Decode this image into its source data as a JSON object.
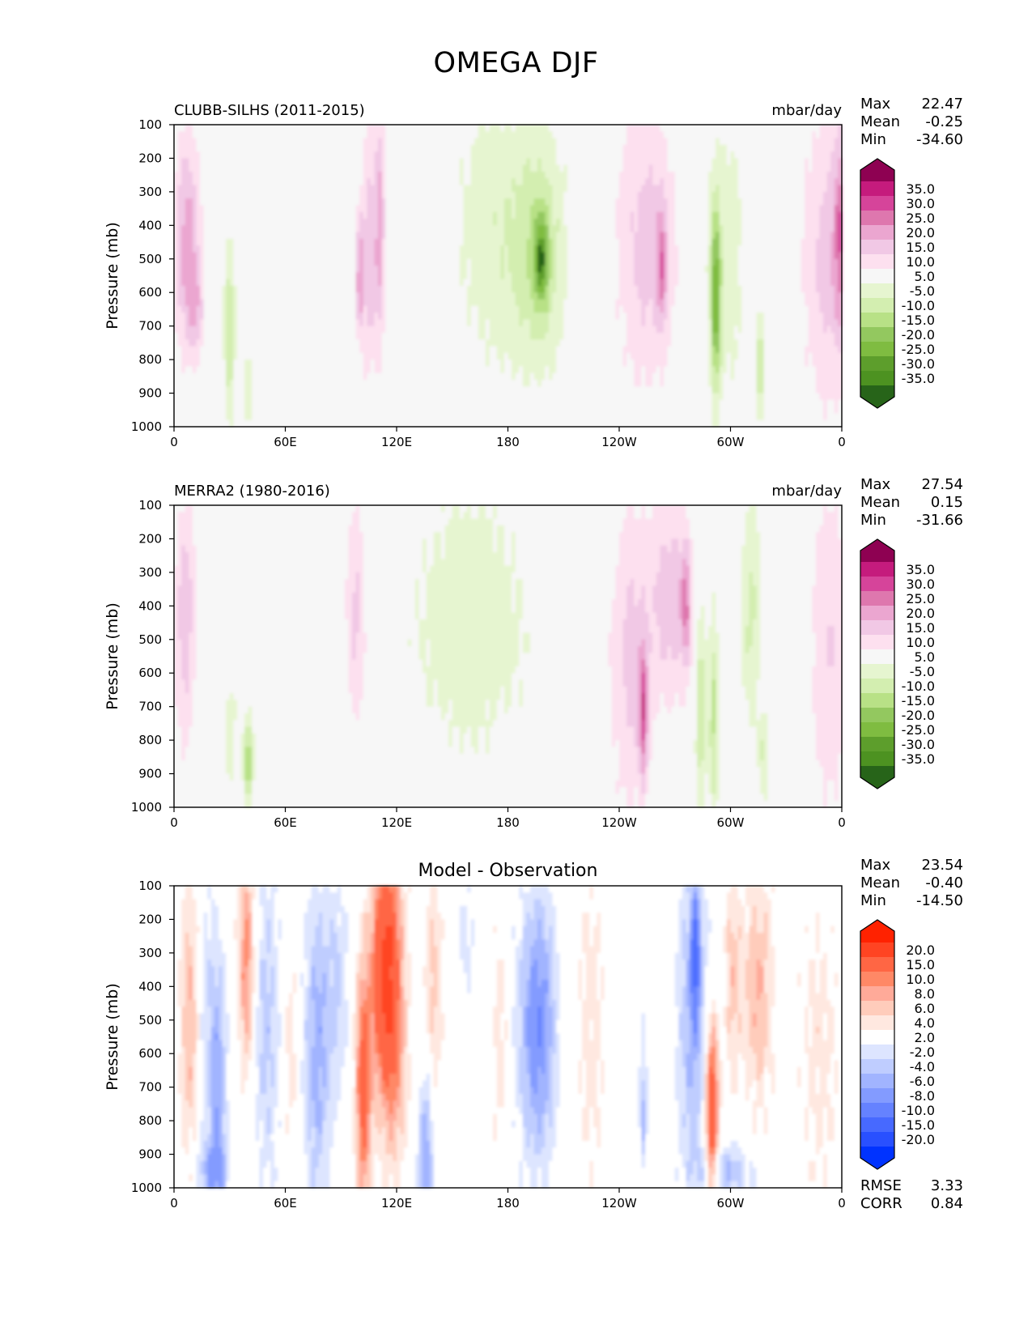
{
  "title": "OMEGA DJF",
  "colors": {
    "pos_scale": [
      "#8e0152",
      "#c51b7d",
      "#d6449a",
      "#de77ae",
      "#eba6d0",
      "#f1c8e5",
      "#fde0ef",
      "#f7f7f7",
      "#e6f5d0",
      "#d3eeb0",
      "#b8e186",
      "#93c85f",
      "#7fbc41",
      "#5d9e2c",
      "#4d9221",
      "#276419"
    ],
    "diff_scale": [
      "#ff2200",
      "#ff4422",
      "#ff6644",
      "#ff8866",
      "#ffaa99",
      "#ffccbb",
      "#ffe8e0",
      "#ffffff",
      "#dde5ff",
      "#bfcdff",
      "#a1b4ff",
      "#839bff",
      "#6582ff",
      "#4769ff",
      "#2950ff",
      "#0033ff"
    ]
  },
  "chart_data": [
    {
      "type": "heatmap",
      "name": "panel-model",
      "left_title": "CLUBB-SILHS (2011-2015)",
      "units": "mbar/day",
      "ylabel": "Pressure (mb)",
      "xticks": [
        "0",
        "60E",
        "120E",
        "180",
        "120W",
        "60W",
        "0"
      ],
      "yticks": [
        "100",
        "200",
        "300",
        "400",
        "500",
        "600",
        "700",
        "800",
        "900",
        "1000"
      ],
      "ylim": [
        1000,
        100
      ],
      "stats": [
        {
          "label": "Max",
          "value": "22.47"
        },
        {
          "label": "Mean",
          "value": "-0.25"
        },
        {
          "label": "Min",
          "value": "-34.60"
        }
      ],
      "colorbar_labels": [
        "35.0",
        "30.0",
        "25.0",
        "20.0",
        "15.0",
        "10.0",
        "5.0",
        "-5.0",
        "-10.0",
        "-15.0",
        "-20.0",
        "-25.0",
        "-30.0",
        "-35.0"
      ],
      "scale": "pos",
      "features": [
        {
          "lon": 7,
          "p": 450,
          "amp": 18,
          "lw": 5,
          "pw": 230
        },
        {
          "lon": 12,
          "p": 650,
          "amp": 10,
          "lw": 3,
          "pw": 90
        },
        {
          "lon": 30,
          "p": 720,
          "amp": -13,
          "lw": 2.5,
          "pw": 220
        },
        {
          "lon": 40,
          "p": 880,
          "amp": -10,
          "lw": 2,
          "pw": 80
        },
        {
          "lon": 105,
          "p": 480,
          "amp": 14,
          "lw": 3,
          "pw": 260
        },
        {
          "lon": 100,
          "p": 550,
          "amp": 18,
          "lw": 1.5,
          "pw": 120
        },
        {
          "lon": 111,
          "p": 400,
          "amp": 16,
          "lw": 2,
          "pw": 260
        },
        {
          "lon": 170,
          "p": 420,
          "amp": -8,
          "lw": 15,
          "pw": 320
        },
        {
          "lon": 197,
          "p": 480,
          "amp": -14,
          "lw": 11,
          "pw": 260
        },
        {
          "lon": 198,
          "p": 500,
          "amp": -22,
          "lw": 2.5,
          "pw": 90
        },
        {
          "lon": 255,
          "p": 460,
          "amp": 12,
          "lw": 12,
          "pw": 320
        },
        {
          "lon": 263,
          "p": 520,
          "amp": 16,
          "lw": 2,
          "pw": 120
        },
        {
          "lon": 292,
          "p": 620,
          "amp": -26,
          "lw": 1.8,
          "pw": 180
        },
        {
          "lon": 297,
          "p": 500,
          "amp": -9,
          "lw": 8,
          "pw": 320
        },
        {
          "lon": 316,
          "p": 820,
          "amp": -14,
          "lw": 2,
          "pw": 120
        },
        {
          "lon": 352,
          "p": 500,
          "amp": 12,
          "lw": 10,
          "pw": 320
        },
        {
          "lon": 360,
          "p": 420,
          "amp": 18,
          "lw": 3,
          "pw": 200
        }
      ]
    },
    {
      "type": "heatmap",
      "name": "panel-obs",
      "left_title": "MERRA2 (1980-2016)",
      "units": "mbar/day",
      "ylabel": "Pressure (mb)",
      "xticks": [
        "0",
        "60E",
        "120E",
        "180",
        "120W",
        "60W",
        "0"
      ],
      "yticks": [
        "100",
        "200",
        "300",
        "400",
        "500",
        "600",
        "700",
        "800",
        "900",
        "1000"
      ],
      "ylim": [
        1000,
        100
      ],
      "stats": [
        {
          "label": "Max",
          "value": "27.54"
        },
        {
          "label": "Mean",
          "value": "0.15"
        },
        {
          "label": "Min",
          "value": "-31.66"
        }
      ],
      "colorbar_labels": [
        "35.0",
        "30.0",
        "25.0",
        "20.0",
        "15.0",
        "10.0",
        "5.0",
        "-5.0",
        "-10.0",
        "-15.0",
        "-20.0",
        "-25.0",
        "-30.0",
        "-35.0"
      ],
      "scale": "pos",
      "features": [
        {
          "lon": 6,
          "p": 450,
          "amp": 14,
          "lw": 4,
          "pw": 260
        },
        {
          "lon": 40,
          "p": 860,
          "amp": -20,
          "lw": 2,
          "pw": 90
        },
        {
          "lon": 30,
          "p": 780,
          "amp": -8,
          "lw": 3,
          "pw": 150
        },
        {
          "lon": 98,
          "p": 420,
          "amp": 12,
          "lw": 4,
          "pw": 260
        },
        {
          "lon": 160,
          "p": 450,
          "amp": -8,
          "lw": 28,
          "pw": 340
        },
        {
          "lon": 246,
          "p": 560,
          "amp": 12,
          "lw": 8,
          "pw": 330
        },
        {
          "lon": 253,
          "p": 720,
          "amp": 22,
          "lw": 1.6,
          "pw": 140
        },
        {
          "lon": 268,
          "p": 380,
          "amp": 13,
          "lw": 8,
          "pw": 230
        },
        {
          "lon": 276,
          "p": 400,
          "amp": 16,
          "lw": 2,
          "pw": 120
        },
        {
          "lon": 284,
          "p": 700,
          "amp": -16,
          "lw": 2,
          "pw": 220
        },
        {
          "lon": 291,
          "p": 720,
          "amp": -16,
          "lw": 2,
          "pw": 220
        },
        {
          "lon": 311,
          "p": 420,
          "amp": -11,
          "lw": 4,
          "pw": 280
        },
        {
          "lon": 318,
          "p": 850,
          "amp": -10,
          "lw": 2,
          "pw": 100
        },
        {
          "lon": 354,
          "p": 520,
          "amp": 10,
          "lw": 8,
          "pw": 360
        }
      ]
    },
    {
      "type": "heatmap",
      "name": "panel-diff",
      "center_title": "Model - Observation",
      "ylabel": "Pressure (mb)",
      "xticks": [
        "0",
        "60E",
        "120E",
        "180",
        "120W",
        "60W",
        "0"
      ],
      "yticks": [
        "100",
        "200",
        "300",
        "400",
        "500",
        "600",
        "700",
        "800",
        "900",
        "1000"
      ],
      "ylim": [
        1000,
        100
      ],
      "stats": [
        {
          "label": "Max",
          "value": "23.54"
        },
        {
          "label": "Mean",
          "value": "-0.40"
        },
        {
          "label": "Min",
          "value": "-14.50"
        }
      ],
      "extra_stats": [
        {
          "label": "RMSE",
          "value": "3.33"
        },
        {
          "label": "CORR",
          "value": "0.84"
        }
      ],
      "colorbar_labels": [
        "20.0",
        "15.0",
        "10.0",
        "8.0",
        "6.0",
        "4.0",
        "2.0",
        "-2.0",
        "-4.0",
        "-6.0",
        "-8.0",
        "-10.0",
        "-15.0",
        "-20.0"
      ],
      "scale": "diff",
      "features": [
        {
          "lon": 9,
          "p": 500,
          "amp": 7,
          "lw": 4,
          "pw": 320
        },
        {
          "lon": 18,
          "p": 520,
          "amp": -4,
          "lw": 6,
          "pw": 320
        },
        {
          "lon": 24,
          "p": 750,
          "amp": -6,
          "lw": 3,
          "pw": 260
        },
        {
          "lon": 39,
          "p": 320,
          "amp": 9,
          "lw": 3,
          "pw": 240
        },
        {
          "lon": 50,
          "p": 520,
          "amp": -5,
          "lw": 5,
          "pw": 330
        },
        {
          "lon": 63,
          "p": 600,
          "amp": 3,
          "lw": 3,
          "pw": 220
        },
        {
          "lon": 77,
          "p": 600,
          "amp": -7,
          "lw": 5,
          "pw": 330
        },
        {
          "lon": 88,
          "p": 400,
          "amp": -4,
          "lw": 5,
          "pw": 240
        },
        {
          "lon": 102,
          "p": 700,
          "amp": 12,
          "lw": 3,
          "pw": 260
        },
        {
          "lon": 113,
          "p": 350,
          "amp": 14,
          "lw": 5,
          "pw": 260
        },
        {
          "lon": 119,
          "p": 500,
          "amp": 7,
          "lw": 5,
          "pw": 340
        },
        {
          "lon": 136,
          "p": 920,
          "amp": -8,
          "lw": 3,
          "pw": 200
        },
        {
          "lon": 140,
          "p": 400,
          "amp": 5,
          "lw": 3,
          "pw": 260
        },
        {
          "lon": 157,
          "p": 260,
          "amp": -3,
          "lw": 4,
          "pw": 120
        },
        {
          "lon": 176,
          "p": 560,
          "amp": 3,
          "lw": 3,
          "pw": 280
        },
        {
          "lon": 196,
          "p": 520,
          "amp": -10,
          "lw": 7,
          "pw": 280
        },
        {
          "lon": 225,
          "p": 520,
          "amp": 3,
          "lw": 6,
          "pw": 340
        },
        {
          "lon": 253,
          "p": 760,
          "amp": -6,
          "lw": 1.5,
          "pw": 160
        },
        {
          "lon": 280,
          "p": 500,
          "amp": -7,
          "lw": 6,
          "pw": 340
        },
        {
          "lon": 281,
          "p": 300,
          "amp": -13,
          "lw": 1.5,
          "pw": 120
        },
        {
          "lon": 290,
          "p": 780,
          "amp": 16,
          "lw": 2.5,
          "pw": 200
        },
        {
          "lon": 301,
          "p": 360,
          "amp": 5,
          "lw": 3,
          "pw": 240
        },
        {
          "lon": 315,
          "p": 400,
          "amp": 6,
          "lw": 6,
          "pw": 250
        },
        {
          "lon": 348,
          "p": 600,
          "amp": 3,
          "lw": 8,
          "pw": 320
        },
        {
          "lon": 298,
          "p": 950,
          "amp": -6,
          "lw": 10,
          "pw": 60
        },
        {
          "lon": 20,
          "p": 950,
          "amp": -6,
          "lw": 6,
          "pw": 60
        }
      ]
    }
  ]
}
